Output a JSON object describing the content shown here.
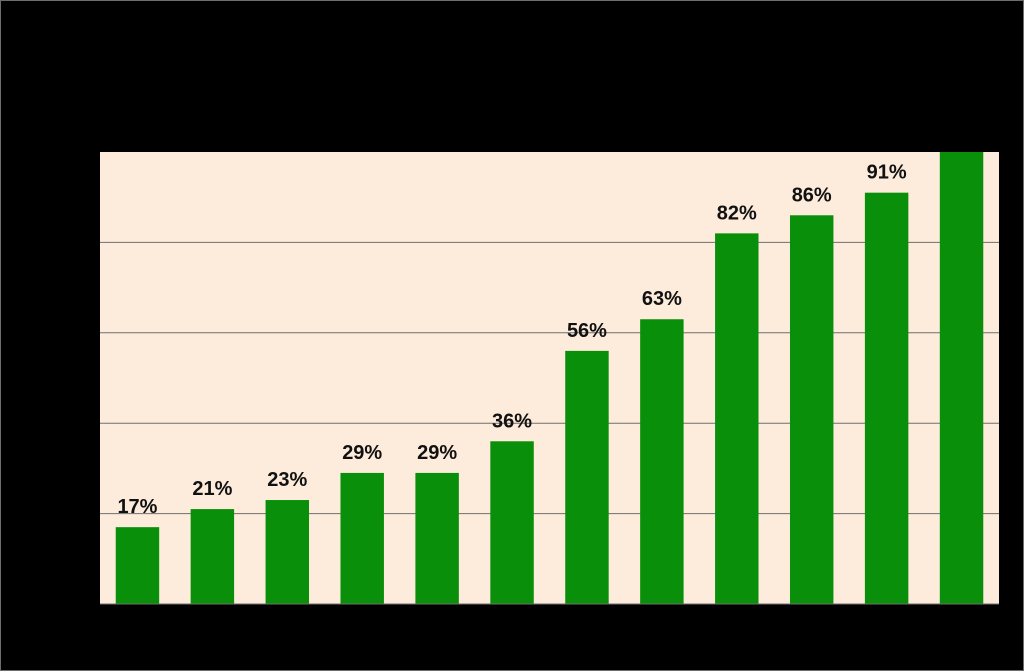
{
  "colors": {
    "background": "#000000",
    "plot_background": "#fdebdc",
    "bar": "#0a8f0a",
    "grid": "#6f6f6f",
    "label": "#111111"
  },
  "chart_data": {
    "type": "bar",
    "categories": [
      "",
      "",
      "",
      "",
      "",
      "",
      "",
      "",
      "",
      "",
      "",
      ""
    ],
    "values": [
      17,
      21,
      23,
      29,
      29,
      36,
      56,
      63,
      82,
      86,
      91,
      100
    ],
    "data_labels": [
      "17%",
      "21%",
      "23%",
      "29%",
      "29%",
      "36%",
      "56%",
      "63%",
      "82%",
      "86%",
      "91%",
      ""
    ],
    "ylim": [
      0,
      100
    ],
    "grid": true,
    "legend": "none"
  }
}
